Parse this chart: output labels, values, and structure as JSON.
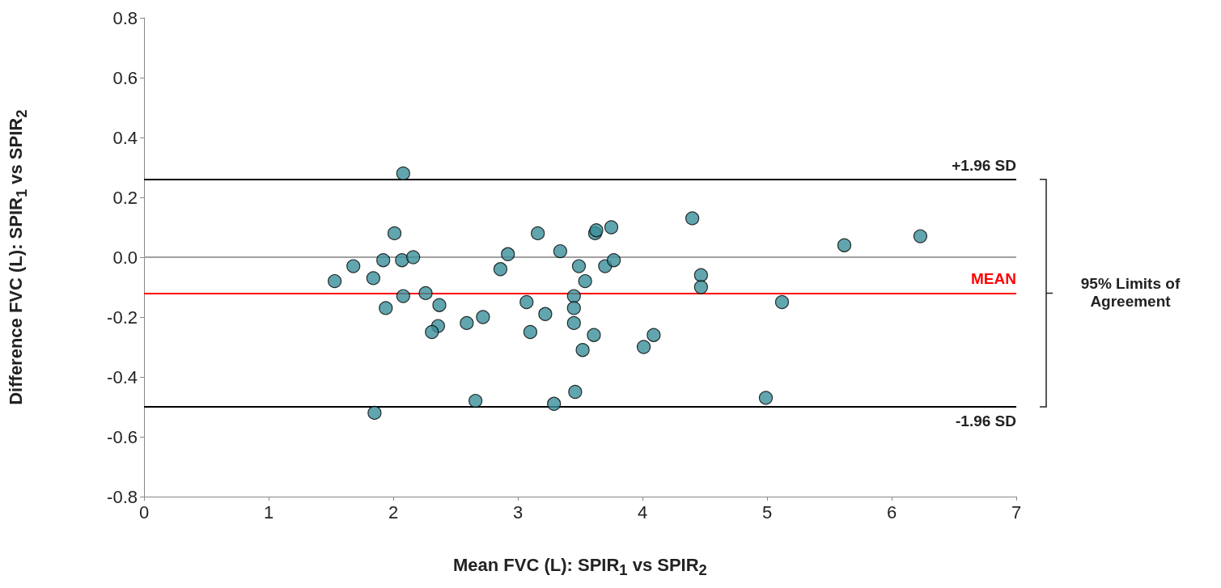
{
  "chart_data": {
    "type": "scatter",
    "xlabel": "Mean FVC (L): SPIR$_{1}$ vs SPIR$_{2}$",
    "ylabel": "Difference FVC (L): SPIR$_{1}$ vs SPIR$_{2}$",
    "x": [
      1.53,
      1.68,
      1.84,
      1.92,
      1.94,
      2.01,
      1.85,
      2.08,
      2.07,
      2.08,
      2.16,
      2.26,
      2.37,
      2.36,
      2.31,
      2.59,
      2.72,
      2.66,
      2.86,
      2.92,
      3.16,
      3.07,
      3.1,
      3.22,
      3.34,
      3.29,
      3.49,
      3.45,
      3.45,
      3.45,
      3.54,
      3.46,
      3.52,
      3.62,
      3.63,
      3.61,
      3.7,
      3.75,
      3.77,
      4.01,
      4.09,
      4.4,
      4.47,
      4.47,
      4.99,
      5.12,
      5.62,
      6.23
    ],
    "series": [
      {
        "color": "#3a8f9a",
        "values": [
          -0.08,
          -0.03,
          -0.07,
          -0.01,
          -0.17,
          0.08,
          -0.52,
          0.28,
          -0.01,
          -0.13,
          0.0,
          -0.12,
          -0.16,
          -0.23,
          -0.25,
          -0.22,
          -0.2,
          -0.48,
          -0.04,
          0.01,
          0.08,
          -0.15,
          -0.25,
          -0.19,
          0.02,
          -0.49,
          -0.03,
          -0.13,
          -0.17,
          -0.22,
          -0.08,
          -0.45,
          -0.31,
          0.08,
          0.09,
          -0.26,
          -0.03,
          0.1,
          -0.01,
          -0.3,
          -0.26,
          0.13,
          -0.06,
          -0.1,
          -0.47,
          -0.15,
          0.04,
          0.07
        ]
      }
    ],
    "marker": "circle",
    "xlim": [
      0,
      7
    ],
    "xticks": [
      0,
      1,
      2,
      3,
      4,
      5,
      6,
      7
    ],
    "ylim": [
      -0.8,
      0.8
    ],
    "yticks": [
      -0.8,
      -0.6,
      -0.4,
      -0.2,
      {
        "value": 0,
        "label": "0.0"
      },
      0.2,
      0.4,
      0.6,
      0.8
    ],
    "grid": false,
    "ref_lines": [
      {
        "axis": "y",
        "value": 0,
        "label": null,
        "color": "#a0a0a0"
      },
      {
        "axis": "y",
        "value": 0.26,
        "label": "+1.96 SD",
        "color": "#000000"
      },
      {
        "axis": "y",
        "value": -0.12,
        "label": "MEAN",
        "color": "#ff0000"
      },
      {
        "axis": "y",
        "value": -0.5,
        "label": "-1.96 SD",
        "color": "#000000"
      }
    ],
    "annotations": [
      "95% Limits of Agreement"
    ]
  }
}
